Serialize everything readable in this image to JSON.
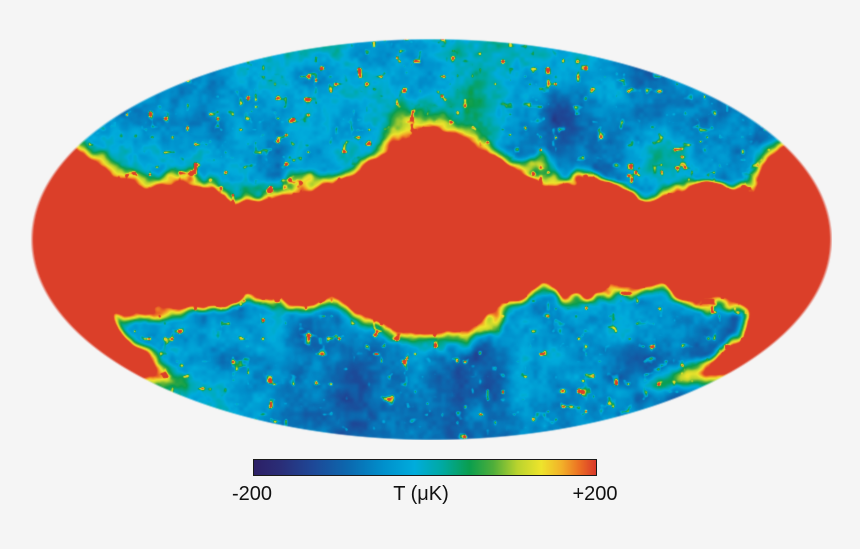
{
  "figure": {
    "description": "All-sky cosmic microwave background temperature map in Mollweide projection with the galactic plane saturated in red",
    "background_color": "#f5f5f5"
  },
  "chart_data": {
    "type": "heatmap",
    "projection": "mollweide",
    "title": "",
    "value_range_uK": [
      -200,
      200
    ],
    "colorbar": {
      "label": "T (μK)",
      "min_label": "-200",
      "max_label": "+200",
      "min_value": -200,
      "max_value": 200,
      "border_color": "#1a1a1a",
      "gradient_stops": [
        {
          "pos": 0.0,
          "color": "#2d2066"
        },
        {
          "pos": 0.08,
          "color": "#2a2e78"
        },
        {
          "pos": 0.17,
          "color": "#1e4796"
        },
        {
          "pos": 0.28,
          "color": "#0b6ab0"
        },
        {
          "pos": 0.38,
          "color": "#0090cc"
        },
        {
          "pos": 0.47,
          "color": "#00acdc"
        },
        {
          "pos": 0.55,
          "color": "#00a9a2"
        },
        {
          "pos": 0.63,
          "color": "#0a9e4e"
        },
        {
          "pos": 0.7,
          "color": "#4fae3a"
        },
        {
          "pos": 0.77,
          "color": "#b9d32e"
        },
        {
          "pos": 0.84,
          "color": "#eee42c"
        },
        {
          "pos": 0.9,
          "color": "#f2b029"
        },
        {
          "pos": 0.95,
          "color": "#ec7123"
        },
        {
          "pos": 1.0,
          "color": "#d9382a"
        }
      ]
    },
    "map": {
      "dominant_feature": "galactic plane band saturated at the +200 uK end of the scale (flat red), widest at the map center and at the left/right tips, with red also hugging the right and lower limbs",
      "sky_texture": "fine-grained CMB anisotropy speckle dominated by cyan/blue with dark navy patches, green-yellow fringe around the saturated band and scattered hot orange-red point sources",
      "saturated_color": "#d9382a"
    }
  }
}
